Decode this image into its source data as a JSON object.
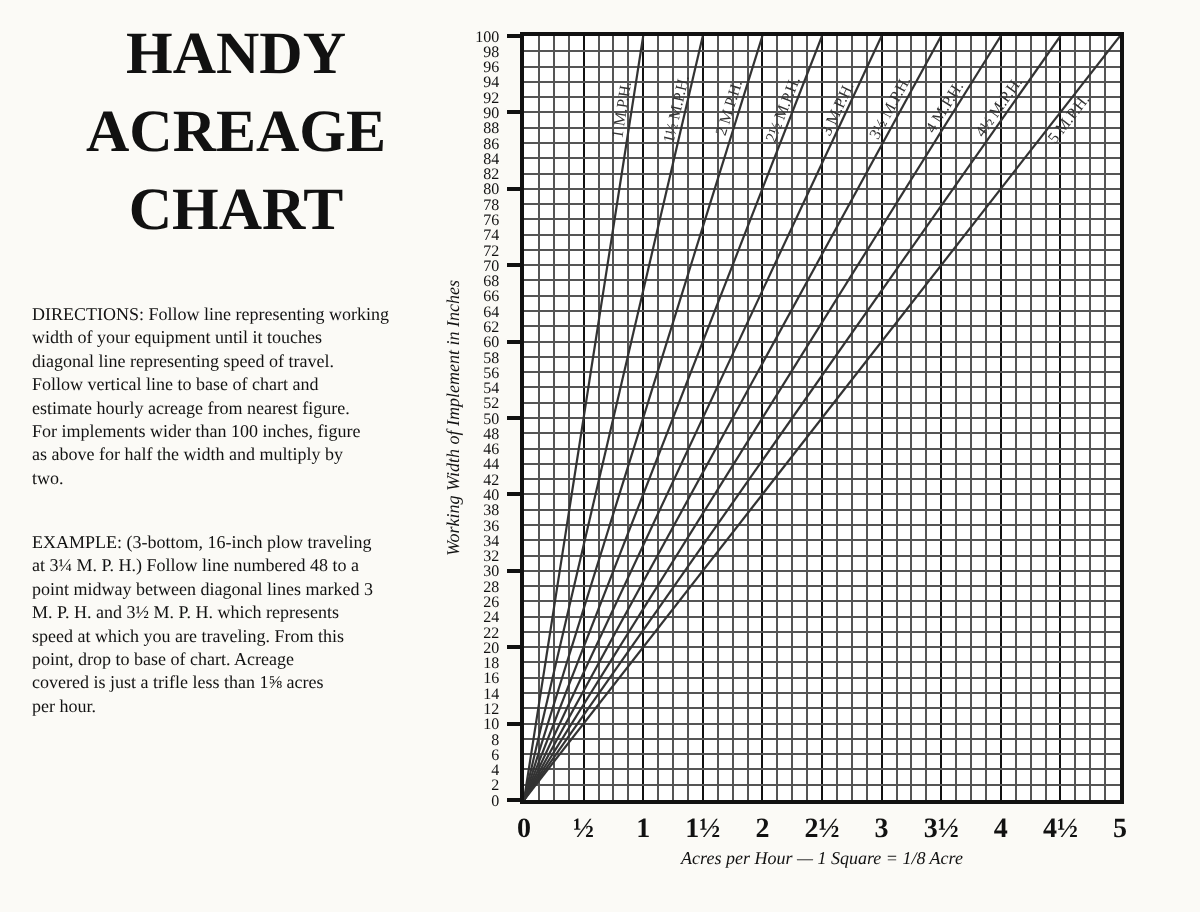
{
  "chart_data": {
    "type": "line",
    "title": "HANDY ACREAGE CHART",
    "xlabel": "Acres per Hour — 1 Square = 1/8 Acre",
    "ylabel": "Working Width of Implement in Inches",
    "annotations": [
      "DIRECTIONS: Follow line representing working width of your equipment until it touches diagonal line representing speed of travel. Follow vertical line to base of chart and estimate hourly acreage from nearest figure. For implements wider than 100 inches, figure as above for half the width and multiply by two.",
      "EXAMPLE: (3-bottom, 16-inch plow traveling at 3¼ M. P. H.) Follow line numbered 48 to a point midway between diagonal lines marked 3 M. P. H. and 3½ M. P. H. which represents speed at which you are traveling. From this point, drop to base of chart. Acreage covered is just a trifle less than 1⅝ acres per hour."
    ],
    "series": [
      {
        "name": "1 M.P.H.",
        "color": "#333333",
        "x": [
          0,
          1
        ],
        "values": [
          0,
          100
        ]
      },
      {
        "name": "1½ M.P.H.",
        "color": "#333333",
        "x": [
          0,
          1.5
        ],
        "values": [
          0,
          100
        ]
      },
      {
        "name": "2 M.P.H.",
        "color": "#333333",
        "x": [
          0,
          2
        ],
        "values": [
          0,
          100
        ]
      },
      {
        "name": "2½ M.P.H.",
        "color": "#333333",
        "x": [
          0,
          2.5
        ],
        "values": [
          0,
          100
        ]
      },
      {
        "name": "3 M.P.H.",
        "color": "#333333",
        "x": [
          0,
          3
        ],
        "values": [
          0,
          100
        ]
      },
      {
        "name": "3½ M.P.H.",
        "color": "#333333",
        "x": [
          0,
          3.5
        ],
        "values": [
          0,
          100
        ]
      },
      {
        "name": "4 M.P.H.",
        "color": "#333333",
        "x": [
          0,
          4
        ],
        "values": [
          0,
          100
        ]
      },
      {
        "name": "4½ M.P.H.",
        "color": "#333333",
        "x": [
          0,
          4.5
        ],
        "values": [
          0,
          100
        ]
      },
      {
        "name": "5 M.P.H.",
        "color": "#333333",
        "x": [
          0,
          5
        ],
        "values": [
          0,
          100
        ]
      }
    ],
    "xlim": [
      0,
      5
    ],
    "ylim": [
      0,
      100
    ],
    "xticks": [
      0,
      {
        "value": 0.125,
        "label": null
      },
      {
        "value": 0.25,
        "label": null
      },
      {
        "value": 0.375,
        "label": null
      },
      {
        "value": 0.5,
        "label": "½"
      },
      {
        "value": 0.625,
        "label": null
      },
      {
        "value": 0.75,
        "label": null
      },
      {
        "value": 0.875,
        "label": null
      },
      1,
      {
        "value": 1.125,
        "label": null
      },
      {
        "value": 1.25,
        "label": null
      },
      {
        "value": 1.375,
        "label": null
      },
      {
        "value": 1.5,
        "label": "1½"
      },
      {
        "value": 1.625,
        "label": null
      },
      {
        "value": 1.75,
        "label": null
      },
      {
        "value": 1.875,
        "label": null
      },
      2,
      {
        "value": 2.125,
        "label": null
      },
      {
        "value": 2.25,
        "label": null
      },
      {
        "value": 2.375,
        "label": null
      },
      {
        "value": 2.5,
        "label": "2½"
      },
      {
        "value": 2.625,
        "label": null
      },
      {
        "value": 2.75,
        "label": null
      },
      {
        "value": 2.875,
        "label": null
      },
      3,
      {
        "value": 3.125,
        "label": null
      },
      {
        "value": 3.25,
        "label": null
      },
      {
        "value": 3.375,
        "label": null
      },
      {
        "value": 3.5,
        "label": "3½"
      },
      {
        "value": 3.625,
        "label": null
      },
      {
        "value": 3.75,
        "label": null
      },
      {
        "value": 3.875,
        "label": null
      },
      4,
      {
        "value": 4.125,
        "label": null
      },
      {
        "value": 4.25,
        "label": null
      },
      {
        "value": 4.375,
        "label": null
      },
      {
        "value": 4.5,
        "label": "4½"
      },
      {
        "value": 4.625,
        "label": null
      },
      {
        "value": 4.75,
        "label": null
      },
      {
        "value": 4.875,
        "label": null
      },
      5
    ],
    "yticks": [
      0,
      2,
      4,
      6,
      8,
      10,
      12,
      14,
      16,
      18,
      20,
      22,
      24,
      26,
      28,
      30,
      32,
      34,
      36,
      38,
      40,
      42,
      44,
      46,
      48,
      50,
      52,
      54,
      56,
      58,
      60,
      62,
      64,
      66,
      68,
      70,
      72,
      74,
      76,
      78,
      80,
      82,
      84,
      86,
      88,
      90,
      92,
      94,
      96,
      98,
      100
    ],
    "grid": true
  }
}
